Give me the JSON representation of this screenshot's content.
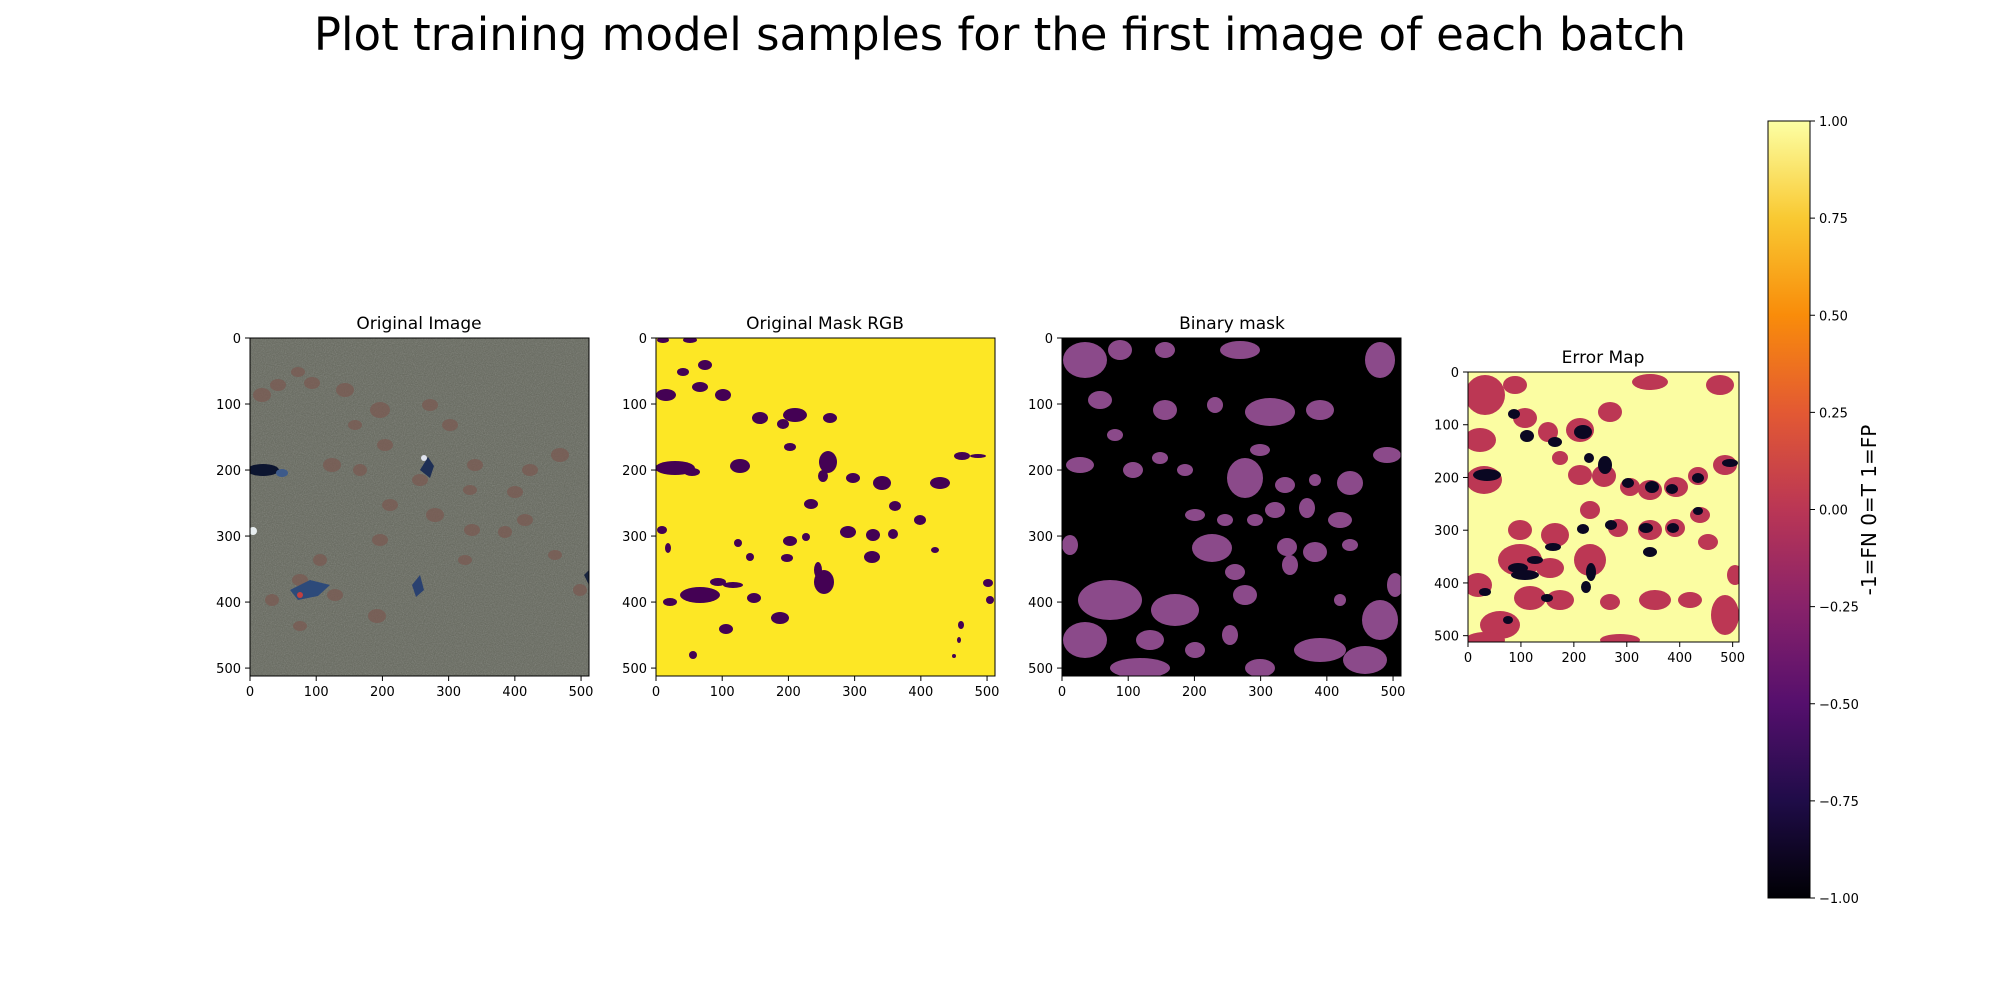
{
  "figure": {
    "suptitle": "Plot training model samples for the first image of each batch"
  },
  "chart_data": [
    {
      "type": "heatmap",
      "title": "Original Image",
      "content": "aerial RGB photo",
      "xlim": [
        0,
        512
      ],
      "ylim": [
        512,
        0
      ],
      "xticks": [
        0,
        100,
        200,
        300,
        400,
        500
      ],
      "yticks": [
        0,
        100,
        200,
        300,
        400,
        500
      ]
    },
    {
      "type": "heatmap",
      "title": "Original Mask RGB",
      "content": "viridis mask",
      "xlim": [
        0,
        512
      ],
      "ylim": [
        512,
        0
      ],
      "xticks": [
        0,
        100,
        200,
        300,
        400,
        500
      ],
      "yticks": [
        0,
        100,
        200,
        300,
        400,
        500
      ]
    },
    {
      "type": "heatmap",
      "title": "Binary mask",
      "content": "binary mask",
      "xlim": [
        0,
        512
      ],
      "ylim": [
        512,
        0
      ],
      "xticks": [
        0,
        100,
        200,
        300,
        400,
        500
      ],
      "yticks": [
        0,
        100,
        200,
        300,
        400,
        500
      ]
    },
    {
      "type": "heatmap",
      "title": "Error Map",
      "content": "error map, inferno colormap",
      "xlim": [
        0,
        512
      ],
      "ylim": [
        512,
        0
      ],
      "xticks": [
        0,
        100,
        200,
        300,
        400,
        500
      ],
      "yticks": [
        0,
        100,
        200,
        300,
        400,
        500
      ],
      "colorbar": {
        "label": "-1=FN 0=T 1=FP",
        "range": [
          -1.0,
          1.0
        ],
        "ticks": [
          "1.00",
          "0.75",
          "0.50",
          "0.25",
          "0.00",
          "−0.25",
          "−0.50",
          "−0.75",
          "−1.00"
        ],
        "colormap": "inferno"
      }
    }
  ],
  "colors": {
    "photo_ground": "#6b6b62",
    "mask_yellow": "#fde725",
    "mask_purple": "#440154",
    "binary_bg": "#000000",
    "binary_fg": "#8b4a8a",
    "error_fp": "#fbfda2",
    "error_t": "#bc3754",
    "error_fn": "#0a0722"
  }
}
